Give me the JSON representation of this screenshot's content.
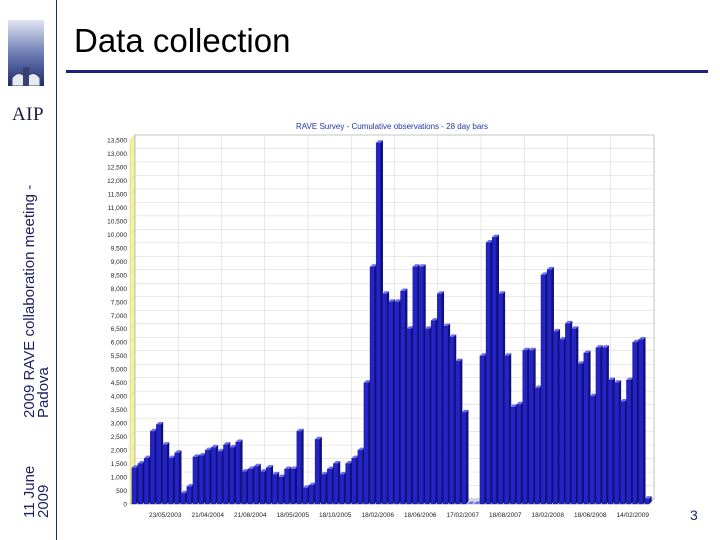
{
  "slide": {
    "title": "Data collection",
    "logo": "AIP",
    "side_meeting": [
      "2009 RAVE collaboration meeting -",
      "Padova"
    ],
    "side_date": [
      "11 June",
      "2009"
    ],
    "page_number": "3",
    "colors": {
      "accent": "#1e237a",
      "bar": "#2222cc"
    }
  },
  "chart_data": {
    "type": "bar",
    "title": "RAVE Survey - Cumulative observations - 28 day bars",
    "xlabel": "",
    "ylabel": "",
    "ylim": [
      0,
      13500
    ],
    "ytick_step": 500,
    "grid": true,
    "x_tick_labels": [
      "23/05/2003",
      "21/04/2004",
      "21/08/2004",
      "18/05/2005",
      "18/10/2005",
      "18/02/2006",
      "18/06/2006",
      "17/02/2007",
      "18/08/2007",
      "18/02/2008",
      "18/06/2008",
      "14/02/2009"
    ],
    "values": [
      1350,
      1500,
      1700,
      2700,
      2950,
      2200,
      1700,
      1900,
      400,
      650,
      1750,
      1800,
      2000,
      2100,
      1950,
      2200,
      2100,
      2300,
      1200,
      1300,
      1400,
      1200,
      1350,
      1100,
      1000,
      1300,
      1300,
      2700,
      600,
      700,
      2400,
      1100,
      1300,
      1500,
      1100,
      1500,
      1700,
      2000,
      4500,
      8800,
      13400,
      7800,
      7500,
      7500,
      7900,
      6500,
      8800,
      8800,
      6500,
      6800,
      7800,
      6600,
      6200,
      5300,
      3400,
      0,
      0,
      5500,
      9700,
      9900,
      7800,
      5500,
      3600,
      3700,
      5700,
      5700,
      4300,
      8500,
      8700,
      6400,
      6100,
      6700,
      6500,
      5200,
      5600,
      4000,
      5800,
      5800,
      4600,
      4500,
      3800,
      4600,
      6000,
      6100,
      200
    ]
  }
}
